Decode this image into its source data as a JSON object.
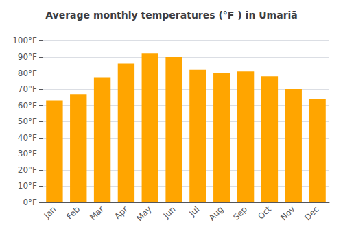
{
  "chart_data": {
    "type": "bar",
    "title": "Average monthly temperatures (°F ) in Umariā",
    "categories": [
      "Jan",
      "Feb",
      "Mar",
      "Apr",
      "May",
      "Jun",
      "Jul",
      "Aug",
      "Sep",
      "Oct",
      "Nov",
      "Dec"
    ],
    "values": [
      63,
      67,
      77,
      86,
      92,
      90,
      82,
      80,
      81,
      78,
      70,
      64
    ],
    "color": "#FFA500",
    "ylim": [
      0,
      104
    ],
    "yticks": [
      {
        "value": 0,
        "label": "0°F"
      },
      {
        "value": 10,
        "label": "10°F"
      },
      {
        "value": 20,
        "label": "20°F"
      },
      {
        "value": 30,
        "label": "30°F"
      },
      {
        "value": 40,
        "label": "40°F"
      },
      {
        "value": 50,
        "label": "50°F"
      },
      {
        "value": 60,
        "label": "60°F"
      },
      {
        "value": 70,
        "label": "70°F"
      },
      {
        "value": 80,
        "label": "80°F"
      },
      {
        "value": 90,
        "label": "90°F"
      },
      {
        "value": 100,
        "label": "100°F"
      }
    ],
    "grid": true
  }
}
